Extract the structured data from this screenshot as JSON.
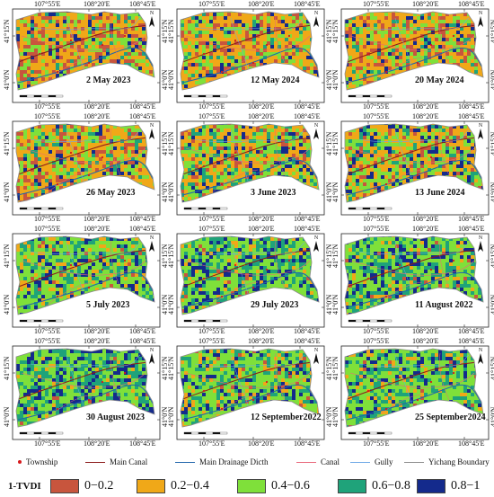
{
  "axis_labels": {
    "lon": [
      "107°55'E",
      "108°20'E",
      "108°45'E"
    ],
    "lat": [
      "41°15'N",
      "41°0'N"
    ]
  },
  "north_label": "N",
  "panels": [
    {
      "date": "2 May 2023",
      "palette": "dry"
    },
    {
      "date": "12 May 2024",
      "palette": "dry"
    },
    {
      "date": "20 May 2024",
      "palette": "dry"
    },
    {
      "date": "26 May 2023",
      "palette": "dry"
    },
    {
      "date": "3 June 2023",
      "palette": "mid"
    },
    {
      "date": "13 June 2024",
      "palette": "mid"
    },
    {
      "date": "5 July 2023",
      "palette": "wet"
    },
    {
      "date": "29 July 2023",
      "palette": "wetter"
    },
    {
      "date": "11 August 2022",
      "palette": "wetter"
    },
    {
      "date": "30 August 2023",
      "palette": "wetter"
    },
    {
      "date": "12 September2022",
      "palette": "wet"
    },
    {
      "date": "25 September2024",
      "palette": "wet"
    }
  ],
  "legend": {
    "features": [
      {
        "label": "Township",
        "color": "#d7191c",
        "type": "dot"
      },
      {
        "label": "Main Canal",
        "color": "#8b1a1a",
        "type": "line"
      },
      {
        "label": "Main Drainage Dicth",
        "color": "#2166ac",
        "type": "line"
      },
      {
        "label": "Canal",
        "color": "#e8677a",
        "type": "line"
      },
      {
        "label": "Gully",
        "color": "#6ea8e6",
        "type": "line"
      },
      {
        "label": "Yichang Boundary",
        "color": "#8c8c8c",
        "type": "line"
      }
    ],
    "index_title": "1-TVDI",
    "classes": [
      {
        "range": "0−0.2",
        "color": "#c8553d"
      },
      {
        "range": "0.2−0.4",
        "color": "#f0a818"
      },
      {
        "range": "0.4−0.6",
        "color": "#7fe03a"
      },
      {
        "range": "0.6−0.8",
        "color": "#1fa37a"
      },
      {
        "range": "0.8−1",
        "color": "#142a8c"
      }
    ]
  }
}
